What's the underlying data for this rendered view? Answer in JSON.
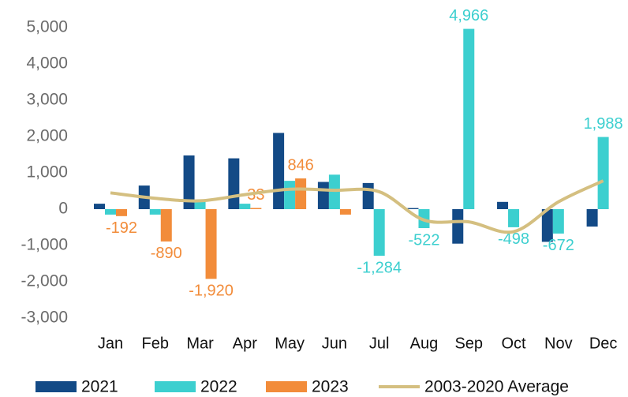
{
  "chart_data": {
    "type": "bar",
    "categories": [
      "Jan",
      "Feb",
      "Mar",
      "Apr",
      "May",
      "Jun",
      "Jul",
      "Aug",
      "Sep",
      "Oct",
      "Nov",
      "Dec"
    ],
    "series": [
      {
        "name": "2021",
        "color": "#134a86",
        "values": [
          150,
          650,
          1480,
          1400,
          2100,
          750,
          720,
          30,
          -950,
          200,
          -900,
          -480
        ]
      },
      {
        "name": "2022",
        "color": "#3ccfcf",
        "values": [
          -150,
          -150,
          200,
          150,
          780,
          950,
          -1284,
          -522,
          4966,
          -498,
          -672,
          1988
        ],
        "value_labels": [
          null,
          null,
          null,
          null,
          null,
          null,
          "-1,284",
          "-522",
          "4,966",
          "-498",
          "-672",
          "1,988"
        ]
      },
      {
        "name": "2023",
        "color": "#f28c3a",
        "values": [
          -192,
          -890,
          -1920,
          33,
          846,
          -150,
          null,
          null,
          null,
          null,
          null,
          null
        ],
        "value_labels": [
          "-192",
          "-890",
          "-1,920",
          "33",
          "846",
          null,
          null,
          null,
          null,
          null,
          null,
          null
        ]
      },
      {
        "name": "2003-2020 Average",
        "type": "line",
        "color": "#d4bf80",
        "values": [
          450,
          300,
          230,
          400,
          550,
          520,
          480,
          -300,
          -350,
          -620,
          200,
          780
        ]
      }
    ],
    "ylim": [
      -3000,
      5000
    ],
    "yticks": [
      {
        "value": -3000,
        "label": "-3,000"
      },
      {
        "value": -2000,
        "label": "-2,000"
      },
      {
        "value": -1000,
        "label": "-1,000"
      },
      0,
      {
        "value": 1000,
        "label": "1,000"
      },
      {
        "value": 2000,
        "label": "2,000"
      },
      {
        "value": 3000,
        "label": "3,000"
      },
      {
        "value": 4000,
        "label": "4,000"
      },
      {
        "value": 5000,
        "label": "5,000"
      }
    ],
    "grid": false
  }
}
